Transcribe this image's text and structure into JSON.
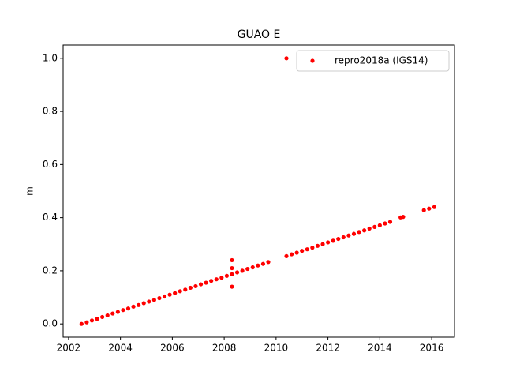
{
  "chart_data": {
    "type": "scatter",
    "title": "GUAO E",
    "y_label": "m",
    "xlim": [
      2001.79,
      2016.88
    ],
    "ylim": [
      -0.05,
      1.05
    ],
    "xticks": [
      2002,
      2004,
      2006,
      2008,
      2010,
      2012,
      2014,
      2016
    ],
    "yticks": [
      {
        "value": 0,
        "label": "0.0"
      },
      0.2,
      0.4,
      0.6,
      0.8,
      {
        "value": 1,
        "label": "1.0"
      }
    ],
    "legend": "upper right",
    "series": [
      {
        "name": "repro2018a (IGS14)",
        "color": "#ff0000",
        "x": [
          2002.5,
          2002.7,
          2002.9,
          2003.1,
          2003.3,
          2003.5,
          2003.7,
          2003.9,
          2004.1,
          2004.3,
          2004.5,
          2004.7,
          2004.9,
          2005.1,
          2005.3,
          2005.5,
          2005.7,
          2005.9,
          2006.1,
          2006.3,
          2006.5,
          2006.7,
          2006.9,
          2007.1,
          2007.3,
          2007.5,
          2007.7,
          2007.9,
          2008.1,
          2008.3,
          2008.5,
          2008.7,
          2008.9,
          2009.1,
          2009.3,
          2009.5,
          2009.7,
          2008.3,
          2008.3,
          2008.3,
          2010.4,
          2010.4,
          2010.6,
          2010.8,
          2011.0,
          2011.2,
          2011.4,
          2011.6,
          2011.8,
          2012.0,
          2012.2,
          2012.4,
          2012.6,
          2012.8,
          2013.0,
          2013.2,
          2013.4,
          2013.6,
          2013.8,
          2014.0,
          2014.2,
          2014.4,
          2014.8,
          2014.9,
          2015.7,
          2015.9,
          2016.1
        ],
        "values": [
          0,
          0.006,
          0.013,
          0.019,
          0.026,
          0.032,
          0.039,
          0.045,
          0.052,
          0.058,
          0.065,
          0.071,
          0.078,
          0.084,
          0.09,
          0.097,
          0.103,
          0.11,
          0.116,
          0.123,
          0.129,
          0.136,
          0.142,
          0.149,
          0.155,
          0.162,
          0.168,
          0.174,
          0.181,
          0.187,
          0.194,
          0.2,
          0.207,
          0.213,
          0.22,
          0.226,
          0.233,
          0.24,
          0.21,
          0.14,
          1.0,
          0.255,
          0.262,
          0.268,
          0.275,
          0.281,
          0.287,
          0.294,
          0.3,
          0.307,
          0.313,
          0.32,
          0.326,
          0.333,
          0.339,
          0.346,
          0.352,
          0.359,
          0.365,
          0.371,
          0.378,
          0.384,
          0.401,
          0.403,
          0.428,
          0.434,
          0.44
        ]
      }
    ]
  }
}
